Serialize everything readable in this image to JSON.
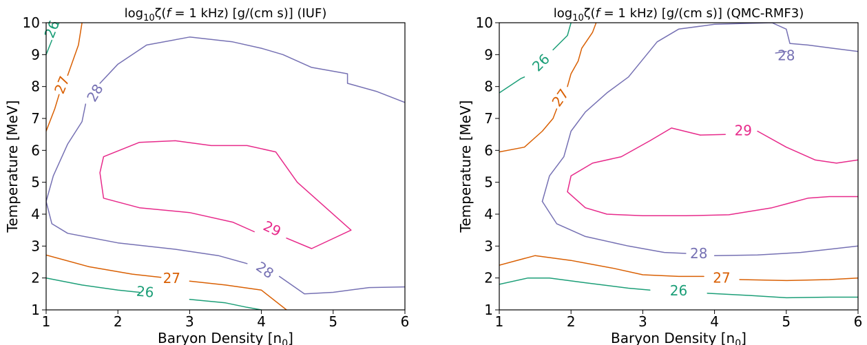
{
  "chart_data": [
    {
      "type": "contour",
      "title": {
        "prefix": "log",
        "sub": "10",
        "zeta": "ζ(",
        "f": "f",
        "rest": " = 1 kHz) [g/(cm s)] (IUF)"
      },
      "xlabel": "Baryon Density [n",
      "xlabel_sub": "0",
      "xlabel_end": "]",
      "ylabel": "Temperature [MeV]",
      "xlim": [
        1,
        6
      ],
      "ylim": [
        1,
        10
      ],
      "xticks": [
        "1",
        "2",
        "3",
        "4",
        "5",
        "6"
      ],
      "yticks": [
        "1",
        "2",
        "3",
        "4",
        "5",
        "6",
        "7",
        "8",
        "9",
        "10"
      ],
      "contours": [
        {
          "level": "26",
          "color": "#1b9e77",
          "segments": [
            [
              [
                1.0,
                2.0
              ],
              [
                1.5,
                1.78
              ],
              [
                2.0,
                1.62
              ],
              [
                2.3,
                1.55
              ]
            ],
            [
              [
                3.0,
                1.33
              ],
              [
                3.5,
                1.22
              ],
              [
                3.8,
                1.08
              ],
              [
                4.0,
                1.0
              ]
            ],
            [
              [
                1.0,
                9.0
              ],
              [
                1.08,
                9.45
              ]
            ],
            [
              [
                1.15,
                9.85
              ],
              [
                1.18,
                10.0
              ]
            ]
          ],
          "labels": [
            {
              "text": "26",
              "x": 2.38,
              "y": 1.57,
              "angle": 5
            },
            {
              "text": "26",
              "x": 1.08,
              "y": 9.8,
              "angle": -68
            }
          ]
        },
        {
          "level": "27",
          "color": "#d95f02",
          "segments": [
            [
              [
                1.0,
                2.72
              ],
              [
                1.6,
                2.35
              ],
              [
                2.2,
                2.12
              ],
              [
                2.6,
                2.02
              ]
            ],
            [
              [
                3.0,
                1.9
              ],
              [
                3.5,
                1.78
              ],
              [
                4.0,
                1.62
              ],
              [
                4.35,
                1.0
              ]
            ],
            [
              [
                1.0,
                6.6
              ],
              [
                1.12,
                7.3
              ],
              [
                1.18,
                7.75
              ]
            ],
            [
              [
                1.3,
                8.35
              ],
              [
                1.45,
                9.3
              ],
              [
                1.5,
                10.0
              ]
            ]
          ],
          "labels": [
            {
              "text": "27",
              "x": 2.75,
              "y": 1.99,
              "angle": 0
            },
            {
              "text": "27",
              "x": 1.22,
              "y": 8.05,
              "angle": -68
            }
          ]
        },
        {
          "level": "28",
          "color": "#7570b3",
          "segments": [
            [
              [
                1.0,
                4.4
              ],
              [
                1.08,
                3.7
              ],
              [
                1.3,
                3.4
              ],
              [
                2.0,
                3.1
              ],
              [
                2.8,
                2.9
              ],
              [
                3.4,
                2.7
              ],
              [
                3.8,
                2.45
              ]
            ],
            [
              [
                4.25,
                2.05
              ],
              [
                4.6,
                1.5
              ],
              [
                5.0,
                1.55
              ],
              [
                5.5,
                1.7
              ],
              [
                6.0,
                1.72
              ]
            ],
            [
              [
                1.0,
                4.4
              ],
              [
                1.1,
                5.2
              ],
              [
                1.3,
                6.2
              ],
              [
                1.5,
                6.9
              ],
              [
                1.55,
                7.45
              ]
            ],
            [
              [
                1.75,
                8.1
              ],
              [
                2.0,
                8.7
              ],
              [
                2.4,
                9.3
              ],
              [
                3.0,
                9.55
              ],
              [
                3.6,
                9.4
              ],
              [
                4.0,
                9.2
              ],
              [
                4.3,
                9.0
              ],
              [
                4.7,
                8.6
              ],
              [
                5.2,
                8.4
              ],
              [
                5.2,
                8.1
              ],
              [
                5.6,
                7.85
              ],
              [
                6.0,
                7.5
              ]
            ]
          ],
          "labels": [
            {
              "text": "28",
              "x": 4.05,
              "y": 2.25,
              "angle": 35
            },
            {
              "text": "28",
              "x": 1.68,
              "y": 7.8,
              "angle": -60
            }
          ]
        },
        {
          "level": "29",
          "color": "#e7298a",
          "segments": [
            [
              [
                4.35,
                3.25
              ],
              [
                4.7,
                2.92
              ],
              [
                5.25,
                3.5
              ],
              [
                4.5,
                5.0
              ],
              [
                4.2,
                5.95
              ],
              [
                3.8,
                6.15
              ],
              [
                3.3,
                6.15
              ],
              [
                2.8,
                6.3
              ],
              [
                2.3,
                6.25
              ],
              [
                1.8,
                5.8
              ],
              [
                1.75,
                5.3
              ],
              [
                1.8,
                4.5
              ],
              [
                2.3,
                4.2
              ],
              [
                3.0,
                4.05
              ],
              [
                3.6,
                3.75
              ],
              [
                3.9,
                3.45
              ]
            ]
          ],
          "labels": [
            {
              "text": "29",
              "x": 4.15,
              "y": 3.55,
              "angle": 25
            }
          ]
        }
      ]
    },
    {
      "type": "contour",
      "title": {
        "prefix": "log",
        "sub": "10",
        "zeta": "ζ(",
        "f": "f",
        "rest": " = 1 kHz) [g/(cm s)] (QMC-RMF3)"
      },
      "xlabel": "Baryon Density [n",
      "xlabel_sub": "0",
      "xlabel_end": "]",
      "ylabel": "Temperature [MeV]",
      "xlim": [
        1,
        6
      ],
      "ylim": [
        1,
        10
      ],
      "xticks": [
        "1",
        "2",
        "3",
        "4",
        "5",
        "6"
      ],
      "yticks": [
        "1",
        "2",
        "3",
        "4",
        "5",
        "6",
        "7",
        "8",
        "9",
        "10"
      ],
      "contours": [
        {
          "level": "26",
          "color": "#1b9e77",
          "segments": [
            [
              [
                1.0,
                1.8
              ],
              [
                1.4,
                2.0
              ],
              [
                1.7,
                2.0
              ],
              [
                2.2,
                1.85
              ],
              [
                2.8,
                1.68
              ],
              [
                3.1,
                1.62
              ]
            ],
            [
              [
                3.9,
                1.52
              ],
              [
                4.5,
                1.45
              ],
              [
                5.0,
                1.38
              ],
              [
                5.6,
                1.4
              ],
              [
                6.0,
                1.4
              ]
            ],
            [
              [
                1.0,
                7.8
              ],
              [
                1.3,
                8.25
              ],
              [
                1.35,
                8.3
              ]
            ],
            [
              [
                1.75,
                9.15
              ],
              [
                1.95,
                9.6
              ],
              [
                2.0,
                10.0
              ]
            ]
          ],
          "labels": [
            {
              "text": "26",
              "x": 3.5,
              "y": 1.6,
              "angle": 0
            },
            {
              "text": "26",
              "x": 1.58,
              "y": 8.75,
              "angle": -45
            }
          ]
        },
        {
          "level": "27",
          "color": "#d95f02",
          "segments": [
            [
              [
                1.0,
                2.4
              ],
              [
                1.5,
                2.7
              ],
              [
                2.0,
                2.55
              ],
              [
                2.6,
                2.3
              ],
              [
                3.0,
                2.1
              ],
              [
                3.5,
                2.05
              ],
              [
                3.85,
                2.05
              ]
            ],
            [
              [
                4.35,
                1.95
              ],
              [
                5.0,
                1.92
              ],
              [
                5.6,
                1.95
              ],
              [
                6.0,
                2.0
              ]
            ],
            [
              [
                1.0,
                5.95
              ],
              [
                1.35,
                6.1
              ],
              [
                1.6,
                6.6
              ],
              [
                1.75,
                7.0
              ],
              [
                1.8,
                7.3
              ]
            ],
            [
              [
                1.95,
                8.0
              ],
              [
                2.0,
                8.4
              ],
              [
                2.1,
                8.8
              ],
              [
                2.15,
                9.2
              ],
              [
                2.3,
                9.7
              ],
              [
                2.35,
                10.0
              ]
            ]
          ],
          "labels": [
            {
              "text": "27",
              "x": 4.1,
              "y": 2.0,
              "angle": 0
            },
            {
              "text": "27",
              "x": 1.85,
              "y": 7.65,
              "angle": -55
            }
          ]
        },
        {
          "level": "28",
          "color": "#7570b3",
          "segments": [
            [
              [
                1.6,
                4.4
              ],
              [
                1.8,
                3.7
              ],
              [
                2.2,
                3.3
              ],
              [
                2.8,
                3.0
              ],
              [
                3.3,
                2.8
              ],
              [
                3.6,
                2.77
              ]
            ],
            [
              [
                4.0,
                2.7
              ],
              [
                4.6,
                2.72
              ],
              [
                5.2,
                2.8
              ],
              [
                5.6,
                2.9
              ],
              [
                6.0,
                3.0
              ]
            ],
            [
              [
                1.6,
                4.4
              ],
              [
                1.7,
                5.2
              ],
              [
                1.9,
                5.8
              ],
              [
                2.0,
                6.6
              ],
              [
                2.2,
                7.2
              ],
              [
                2.5,
                7.8
              ],
              [
                2.8,
                8.3
              ],
              [
                3.2,
                9.4
              ],
              [
                3.5,
                9.8
              ],
              [
                4.0,
                9.95
              ],
              [
                4.8,
                10.0
              ],
              [
                5.0,
                9.8
              ],
              [
                5.05,
                9.35
              ],
              [
                5.3,
                9.3
              ],
              [
                5.65,
                9.2
              ],
              [
                6.0,
                9.1
              ]
            ],
            [
              [
                4.85,
                9.05
              ],
              [
                5.0,
                9.1
              ]
            ]
          ],
          "labels": [
            {
              "text": "28",
              "x": 3.78,
              "y": 2.77,
              "angle": 0
            },
            {
              "text": "28",
              "x": 5.0,
              "y": 8.98,
              "angle": 0
            }
          ]
        },
        {
          "level": "29",
          "color": "#e7298a",
          "segments": [
            [
              [
                3.8,
                6.48
              ],
              [
                3.4,
                6.7
              ],
              [
                3.1,
                6.3
              ],
              [
                2.7,
                5.8
              ],
              [
                2.3,
                5.6
              ],
              [
                2.0,
                5.2
              ],
              [
                1.95,
                4.7
              ],
              [
                2.2,
                4.2
              ],
              [
                2.5,
                4.0
              ],
              [
                3.0,
                3.95
              ],
              [
                3.6,
                3.95
              ],
              [
                4.2,
                3.98
              ],
              [
                4.8,
                4.2
              ],
              [
                5.3,
                4.5
              ],
              [
                5.6,
                4.55
              ],
              [
                6.0,
                4.55
              ]
            ],
            [
              [
                3.8,
                6.48
              ],
              [
                4.15,
                6.5
              ]
            ],
            [
              [
                4.6,
                6.6
              ],
              [
                5.0,
                6.1
              ],
              [
                5.4,
                5.7
              ],
              [
                5.7,
                5.6
              ],
              [
                6.0,
                5.7
              ]
            ]
          ],
          "labels": [
            {
              "text": "29",
              "x": 4.4,
              "y": 6.62,
              "angle": 0
            }
          ]
        }
      ]
    }
  ]
}
